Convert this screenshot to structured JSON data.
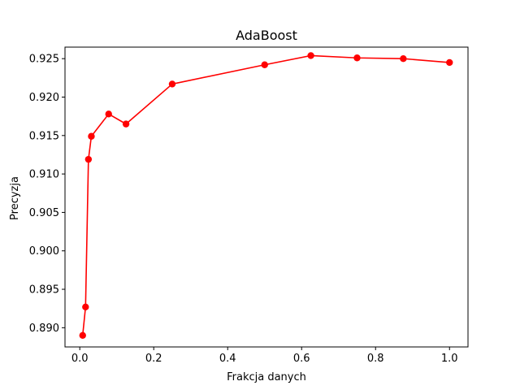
{
  "chart_data": {
    "type": "line",
    "title": "AdaBoost",
    "xlabel": "Frakcja danych",
    "ylabel": "Precyzja",
    "xlim": [
      -0.04,
      1.05
    ],
    "ylim": [
      0.8875,
      0.9265
    ],
    "xticks": [
      0.0,
      0.2,
      0.4,
      0.6,
      0.8,
      1.0
    ],
    "xtick_labels": [
      "0.0",
      "0.2",
      "0.4",
      "0.6",
      "0.8",
      "1.0"
    ],
    "yticks": [
      0.89,
      0.895,
      0.9,
      0.905,
      0.91,
      0.915,
      0.92,
      0.925
    ],
    "ytick_labels": [
      "0.890",
      "0.895",
      "0.900",
      "0.905",
      "0.910",
      "0.915",
      "0.920",
      "0.925"
    ],
    "grid": false,
    "legend": null,
    "series": [
      {
        "color": "#ff0000",
        "marker": "circle",
        "x": [
          0.0078,
          0.0156,
          0.0234,
          0.0313,
          0.0781,
          0.125,
          0.25,
          0.5,
          0.625,
          0.75,
          0.875,
          1.0
        ],
        "y": [
          0.889,
          0.8927,
          0.9119,
          0.9149,
          0.9178,
          0.9165,
          0.9217,
          0.9242,
          0.9254,
          0.9251,
          0.925,
          0.9245
        ]
      }
    ]
  }
}
